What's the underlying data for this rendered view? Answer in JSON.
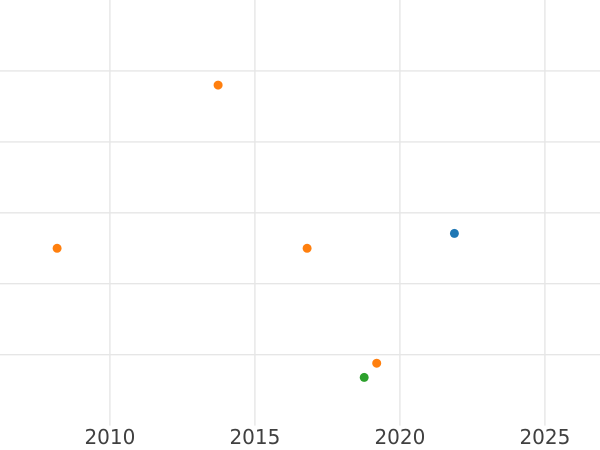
{
  "chart_data": {
    "type": "scatter",
    "title": "",
    "xlabel": "",
    "ylabel": "",
    "x_tick_labels": [
      "2010",
      "2015",
      "2020",
      "2025"
    ],
    "x_ticks": [
      2010,
      2015,
      2020,
      2025
    ],
    "xlim": [
      2006.21,
      2026.9
    ],
    "ylim": [
      0,
      6
    ],
    "y_gridlines": [
      1,
      2,
      3,
      4,
      5
    ],
    "grid": true,
    "legend_position": "none",
    "y_axis_labels_visible": false,
    "marker_diameter_px": 9,
    "series": [
      {
        "name": "orange-series",
        "color": "#ff7f0e",
        "points": [
          {
            "x": 2008.18,
            "y": 2.5
          },
          {
            "x": 2013.73,
            "y": 4.8
          },
          {
            "x": 2016.8,
            "y": 2.5
          },
          {
            "x": 2019.2,
            "y": 0.88
          }
        ]
      },
      {
        "name": "green-series",
        "color": "#2ca02c",
        "points": [
          {
            "x": 2018.77,
            "y": 0.68
          }
        ]
      },
      {
        "name": "blue-series",
        "color": "#1f77b4",
        "points": [
          {
            "x": 2021.88,
            "y": 2.71
          }
        ]
      }
    ],
    "colors": {
      "grid": "#e6e6e6",
      "tick_label": "#404040",
      "background": "#ffffff"
    }
  }
}
